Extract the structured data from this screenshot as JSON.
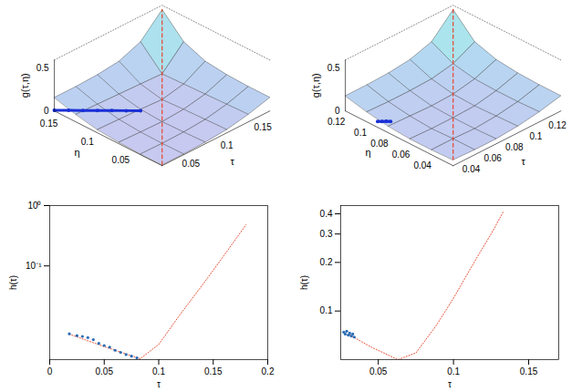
{
  "chart_data": [
    {
      "type": "surface",
      "xlabel": "τ",
      "ylabel": "η",
      "zlabel": "g(τ,η)",
      "xlim": [
        0.02,
        0.17
      ],
      "ylim": [
        0.02,
        0.17
      ],
      "zlim": [
        0,
        0.6
      ],
      "xticks": [
        0.05,
        0.1,
        0.15
      ],
      "yticks": [
        0.05,
        0.1,
        0.15
      ],
      "zticks": [
        0,
        0.5
      ],
      "tau": [
        0.02,
        0.05,
        0.08,
        0.11,
        0.14,
        0.17
      ],
      "eta": [
        0.02,
        0.05,
        0.08,
        0.11,
        0.14,
        0.17
      ],
      "g": [
        [
          0.01,
          0.01,
          0.02,
          0.04,
          0.09,
          0.16
        ],
        [
          0.01,
          0.005,
          0.01,
          0.03,
          0.08,
          0.16
        ],
        [
          0.02,
          0.01,
          0.003,
          0.02,
          0.07,
          0.17
        ],
        [
          0.04,
          0.03,
          0.02,
          0.005,
          0.06,
          0.2
        ],
        [
          0.09,
          0.08,
          0.07,
          0.06,
          0.05,
          0.3
        ],
        [
          0.16,
          0.16,
          0.17,
          0.2,
          0.3,
          0.55
        ]
      ],
      "diagonal": {
        "color": "#e8452c",
        "line_style": "dashed"
      },
      "path": {
        "tau": [
          0.02,
          0.03,
          0.04,
          0.05,
          0.06,
          0.07,
          0.08
        ],
        "eta": [
          0.17,
          0.16,
          0.15,
          0.14,
          0.13,
          0.12,
          0.11
        ],
        "g": [
          0.008,
          0.007,
          0.006,
          0.005,
          0.004,
          0.0035,
          0.003
        ],
        "color": "#1a2fd6",
        "marker": "circle"
      }
    },
    {
      "type": "surface",
      "xlabel": "τ",
      "ylabel": "η",
      "zlabel": "g(τ,η)",
      "xlim": [
        0.03,
        0.13
      ],
      "ylim": [
        0.03,
        0.13
      ],
      "zlim": [
        0,
        0.6
      ],
      "xticks": [
        0.04,
        0.06,
        0.08,
        0.1,
        0.12
      ],
      "yticks": [
        0.04,
        0.06,
        0.08,
        0.1,
        0.12
      ],
      "zticks": [
        0,
        0.5
      ],
      "tau": [
        0.03,
        0.05,
        0.07,
        0.09,
        0.11,
        0.13
      ],
      "eta": [
        0.03,
        0.05,
        0.07,
        0.09,
        0.11,
        0.13
      ],
      "g": [
        [
          0.07,
          0.06,
          0.06,
          0.08,
          0.12,
          0.18
        ],
        [
          0.06,
          0.06,
          0.05,
          0.07,
          0.11,
          0.18
        ],
        [
          0.06,
          0.05,
          0.05,
          0.06,
          0.11,
          0.19
        ],
        [
          0.08,
          0.07,
          0.06,
          0.07,
          0.12,
          0.22
        ],
        [
          0.12,
          0.11,
          0.11,
          0.12,
          0.17,
          0.3
        ],
        [
          0.18,
          0.18,
          0.19,
          0.22,
          0.3,
          0.55
        ]
      ],
      "diagonal": {
        "color": "#e8452c",
        "line_style": "dashed"
      },
      "path": {
        "tau": [
          0.03,
          0.032,
          0.034,
          0.036
        ],
        "eta": [
          0.1,
          0.098,
          0.096,
          0.094
        ],
        "g": [
          0.07,
          0.07,
          0.072,
          0.07
        ],
        "color": "#1a2fd6",
        "marker": "circle"
      }
    },
    {
      "type": "line",
      "xlabel": "τ",
      "ylabel": "h(τ)",
      "log": "y",
      "xlim": [
        0,
        0.2
      ],
      "ylim": [
        0.0028,
        1
      ],
      "xticks": [
        0,
        0.05,
        0.1,
        0.15,
        0.2
      ],
      "yticks": [
        {
          "value": 0.1,
          "label": "10⁻¹"
        },
        {
          "value": 1,
          "label": "10⁰"
        }
      ],
      "series": [
        {
          "type": "line",
          "color": "#e8452c",
          "line_style": "dotted",
          "x": [
            0.018,
            0.05,
            0.083,
            0.1,
            0.12,
            0.14,
            0.16,
            0.18
          ],
          "values": [
            0.0074,
            0.0046,
            0.0029,
            0.005,
            0.016,
            0.048,
            0.15,
            0.48
          ]
        },
        {
          "type": "scatter",
          "color": "#2a6db5",
          "marker": "dot",
          "x": [
            0.018,
            0.025,
            0.03,
            0.035,
            0.04,
            0.045,
            0.05,
            0.055,
            0.06,
            0.065,
            0.07,
            0.075,
            0.08
          ],
          "values": [
            0.0075,
            0.007,
            0.0068,
            0.0065,
            0.006,
            0.0052,
            0.0048,
            0.0045,
            0.004,
            0.0037,
            0.0034,
            0.0032,
            0.003
          ]
        }
      ]
    },
    {
      "type": "line",
      "xlabel": "τ",
      "ylabel": "h(τ)",
      "log": "y",
      "xlim": [
        0.025,
        0.17
      ],
      "ylim": [
        0.05,
        0.45
      ],
      "xticks": [
        0.05,
        0.1,
        0.15
      ],
      "yticks": [
        0.1,
        0.2,
        0.3,
        0.4
      ],
      "series": [
        {
          "type": "line",
          "color": "#e8452c",
          "line_style": "dotted",
          "x": [
            0.031,
            0.045,
            0.063,
            0.075,
            0.088,
            0.1,
            0.115,
            0.125,
            0.133
          ],
          "values": [
            0.071,
            0.06,
            0.05,
            0.055,
            0.08,
            0.12,
            0.21,
            0.3,
            0.41
          ]
        },
        {
          "type": "scatter",
          "color": "#2a6db5",
          "marker": "dot",
          "x": [
            0.027,
            0.028,
            0.029,
            0.03,
            0.031,
            0.032,
            0.033,
            0.034
          ],
          "values": [
            0.074,
            0.072,
            0.075,
            0.071,
            0.073,
            0.07,
            0.072,
            0.069
          ]
        }
      ]
    }
  ]
}
